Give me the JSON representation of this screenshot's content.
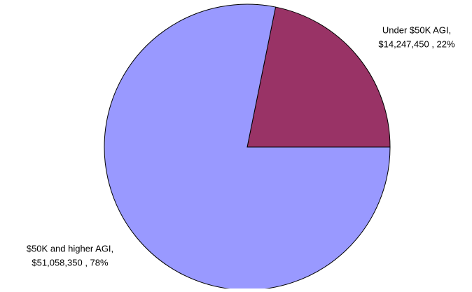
{
  "chart_data": {
    "type": "pie",
    "categories": [
      "Under $50K AGI,",
      "$50K and higher AGI,"
    ],
    "values": [
      14247450,
      51058350
    ],
    "value_labels": [
      "$14,247,450 , 22%",
      "$51,058,350 , 78%"
    ],
    "colors": [
      "#993366",
      "#9999ff"
    ]
  }
}
